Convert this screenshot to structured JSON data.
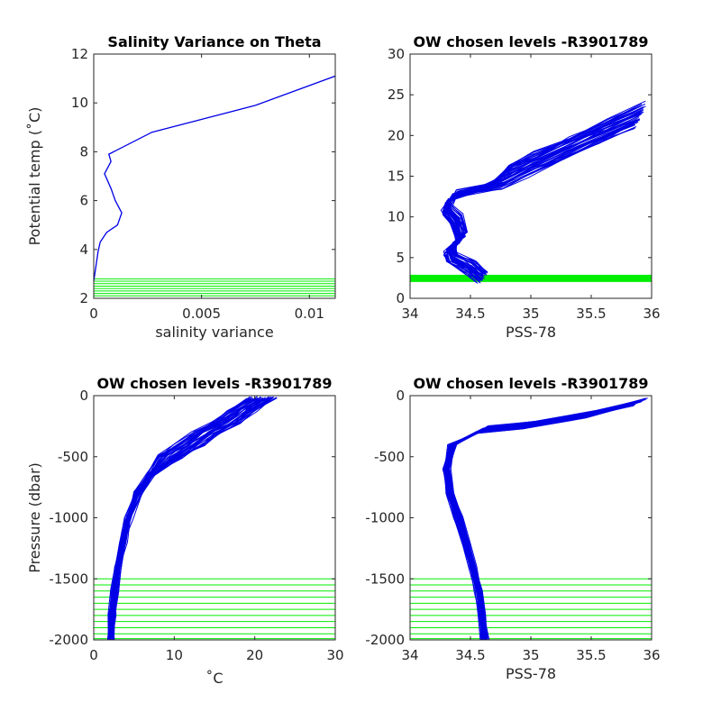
{
  "chart_data": [
    {
      "type": "line",
      "title": "Salinity Variance on Theta",
      "xlabel": "salinity variance",
      "ylabel": "Potential temp (˚C)",
      "xlim": [
        0,
        0.0112
      ],
      "ylim": [
        2,
        12
      ],
      "xticks": [
        0,
        0.005,
        0.01
      ],
      "xtick_labels": [
        "0",
        "0.005",
        "0.01"
      ],
      "yticks": [
        2,
        4,
        6,
        8,
        10,
        12
      ],
      "yticks_labels": [
        "2",
        "4",
        "6",
        "8",
        "10",
        "12"
      ],
      "series": [
        {
          "color": "#0000e6",
          "x": [
            0.0112,
            0.0075,
            0.0027,
            0.0007,
            0.0008,
            0.0005,
            0.0008,
            0.001,
            0.0013,
            0.0011,
            0.0006,
            0.0003,
            0.0002,
            0.0001,
            0.0
          ],
          "y": [
            11.1,
            9.9,
            8.8,
            7.9,
            7.6,
            7.1,
            6.5,
            6.0,
            5.5,
            5.0,
            4.7,
            4.3,
            3.9,
            3.3,
            2.7
          ]
        }
      ],
      "chosen_levels": {
        "color": "#00ee00",
        "values": [
          2.1,
          2.2,
          2.3,
          2.4,
          2.5,
          2.6,
          2.7,
          2.8
        ]
      }
    },
    {
      "type": "line",
      "title": "OW chosen levels -R3901789",
      "xlabel": "PSS-78",
      "ylabel": "",
      "xlim": [
        34,
        36
      ],
      "ylim": [
        0,
        30
      ],
      "xticks": [
        34,
        34.5,
        35,
        35.5,
        36
      ],
      "xtick_labels": [
        "34",
        "34.5",
        "35",
        "35.5",
        "36"
      ],
      "yticks": [
        0,
        5,
        10,
        15,
        20,
        25,
        30
      ],
      "yticks_labels": [
        "0",
        "5",
        "10",
        "15",
        "20",
        "25",
        "30"
      ],
      "series": [
        {
          "color": "#0000e6",
          "note_profiles": 40,
          "x": [
            34.6,
            34.5,
            34.35,
            34.33,
            34.42,
            34.38,
            34.3,
            34.35,
            34.5,
            34.8,
            35.0,
            35.3,
            35.6,
            35.9
          ],
          "y": [
            2.5,
            3.8,
            5.0,
            6.0,
            7.5,
            9.5,
            11.0,
            12.5,
            13.5,
            15.0,
            16.5,
            18.5,
            20.5,
            22.5
          ]
        }
      ],
      "chosen_levels": {
        "color": "#00ee00",
        "values": [
          2.1,
          2.2,
          2.3,
          2.4,
          2.5,
          2.6,
          2.7,
          2.8
        ]
      }
    },
    {
      "type": "line",
      "title": "OW chosen levels -R3901789",
      "xlabel": "˚C",
      "ylabel": "Pressure (dbar)",
      "xlim": [
        0,
        30
      ],
      "ylim": [
        -2000,
        0
      ],
      "xticks": [
        0,
        10,
        20,
        30
      ],
      "xtick_labels": [
        "0",
        "10",
        "20",
        "30"
      ],
      "yticks": [
        -2000,
        -1500,
        -1000,
        -500,
        0
      ],
      "yticks_labels": [
        "-2000",
        "-1500",
        "-1000",
        "-500",
        "0"
      ],
      "series": [
        {
          "color": "#0000e6",
          "x": [
            2.1,
            2.3,
            2.6,
            3.0,
            3.6,
            4.4,
            5.5,
            7.0,
            9.5,
            12.0,
            14.0,
            16.5,
            18.5,
            21.0
          ],
          "y": [
            -2000,
            -1800,
            -1600,
            -1400,
            -1200,
            -1000,
            -800,
            -650,
            -500,
            -400,
            -300,
            -220,
            -120,
            -20
          ]
        }
      ],
      "chosen_levels": {
        "color": "#00ee00",
        "values": [
          -1500,
          -1550,
          -1600,
          -1650,
          -1700,
          -1750,
          -1800,
          -1850,
          -1900,
          -1950,
          -1990
        ]
      }
    },
    {
      "type": "line",
      "title": "OW chosen levels -R3901789",
      "xlabel": "PSS-78",
      "ylabel": "",
      "xlim": [
        34,
        36
      ],
      "ylim": [
        -2000,
        0
      ],
      "xticks": [
        34,
        34.5,
        35,
        35.5,
        36
      ],
      "xtick_labels": [
        "34",
        "34.5",
        "35",
        "35.5",
        "36"
      ],
      "yticks": [
        -2000,
        -1500,
        -1000,
        -500,
        0
      ],
      "yticks_labels": [
        "-2000",
        "-1500",
        "-1000",
        "-500",
        "0"
      ],
      "series": [
        {
          "color": "#0000e6",
          "x": [
            34.62,
            34.6,
            34.57,
            34.52,
            34.46,
            34.4,
            34.33,
            34.3,
            34.35,
            34.6,
            35.0,
            35.5,
            35.9
          ],
          "y": [
            -2000,
            -1800,
            -1600,
            -1400,
            -1200,
            -1000,
            -800,
            -600,
            -400,
            -280,
            -240,
            -150,
            -50
          ]
        }
      ],
      "chosen_levels": {
        "color": "#00ee00",
        "values": [
          -1500,
          -1550,
          -1600,
          -1650,
          -1700,
          -1750,
          -1800,
          -1850,
          -1900,
          -1950,
          -1990
        ]
      }
    }
  ]
}
